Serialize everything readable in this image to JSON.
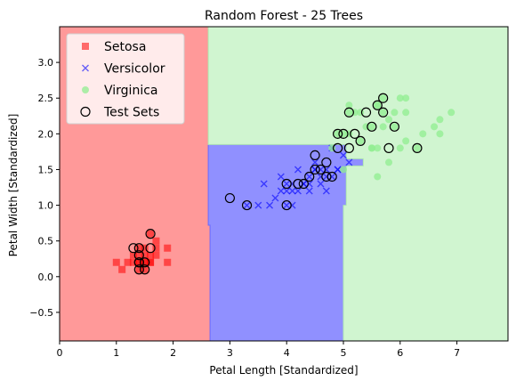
{
  "chart_data": {
    "type": "scatter",
    "title": "Random Forest - 25 Trees",
    "xlabel": "Petal Length [Standardized]",
    "ylabel": "Petal Width [Standardized]",
    "xlim": [
      0,
      7.9
    ],
    "ylim": [
      -0.9,
      3.5
    ],
    "x_ticks": [
      0,
      1,
      2,
      3,
      4,
      5,
      6,
      7
    ],
    "y_ticks": [
      -0.5,
      0.0,
      0.5,
      1.0,
      1.5,
      2.0,
      2.5,
      3.0
    ],
    "y_tick_labels": [
      "−0.5",
      "0.0",
      "0.5",
      "1.0",
      "1.5",
      "2.0",
      "2.5",
      "3.0"
    ],
    "grid": false,
    "legend_placement": "top-left",
    "colors": {
      "setosa": "#ff0000",
      "versicolor": "#0000ff",
      "virginica": "#90ee90",
      "region_setosa": "#ff9999",
      "region_versicolor": "#9090ff",
      "region_virginica": "#d0f5d0",
      "test_edge": "#000000"
    },
    "decision_regions": [
      {
        "class": "Setosa",
        "polygon": [
          [
            0,
            -0.9
          ],
          [
            2.65,
            -0.9
          ],
          [
            2.65,
            0.72
          ],
          [
            2.62,
            0.72
          ],
          [
            2.62,
            3.5
          ],
          [
            0,
            3.5
          ]
        ]
      },
      {
        "class": "Versicolor",
        "polygon": [
          [
            2.65,
            -0.9
          ],
          [
            5.0,
            -0.9
          ],
          [
            5.0,
            1.0
          ],
          [
            5.05,
            1.0
          ],
          [
            5.05,
            1.55
          ],
          [
            5.35,
            1.55
          ],
          [
            5.35,
            1.65
          ],
          [
            5.05,
            1.65
          ],
          [
            5.05,
            1.85
          ],
          [
            2.62,
            1.85
          ],
          [
            2.62,
            0.72
          ],
          [
            2.65,
            0.72
          ]
        ]
      },
      {
        "class": "Virginica",
        "polygon": [
          [
            5.0,
            -0.9
          ],
          [
            7.9,
            -0.9
          ],
          [
            7.9,
            3.5
          ],
          [
            2.62,
            3.5
          ],
          [
            2.62,
            1.85
          ],
          [
            5.05,
            1.85
          ],
          [
            5.05,
            1.65
          ],
          [
            5.35,
            1.65
          ],
          [
            5.35,
            1.55
          ],
          [
            5.05,
            1.55
          ],
          [
            5.05,
            1.0
          ],
          [
            5.0,
            1.0
          ]
        ]
      }
    ],
    "series": [
      {
        "name": "Setosa",
        "marker": "square",
        "points": [
          [
            1.4,
            0.2
          ],
          [
            1.3,
            0.2
          ],
          [
            1.5,
            0.2
          ],
          [
            1.4,
            0.2
          ],
          [
            1.7,
            0.4
          ],
          [
            1.4,
            0.3
          ],
          [
            1.5,
            0.2
          ],
          [
            1.5,
            0.1
          ],
          [
            1.6,
            0.2
          ],
          [
            1.4,
            0.1
          ],
          [
            1.1,
            0.1
          ],
          [
            1.2,
            0.2
          ],
          [
            1.7,
            0.3
          ],
          [
            1.5,
            0.3
          ],
          [
            1.0,
            0.2
          ],
          [
            1.9,
            0.2
          ],
          [
            1.6,
            0.2
          ],
          [
            1.9,
            0.4
          ],
          [
            1.6,
            0.6
          ],
          [
            1.7,
            0.5
          ],
          [
            1.3,
            0.3
          ],
          [
            1.5,
            0.4
          ],
          [
            1.4,
            0.4
          ],
          [
            1.6,
            0.3
          ]
        ]
      },
      {
        "name": "Versicolor",
        "marker": "x",
        "points": [
          [
            4.7,
            1.4
          ],
          [
            4.5,
            1.5
          ],
          [
            4.9,
            1.5
          ],
          [
            4.0,
            1.3
          ],
          [
            4.6,
            1.5
          ],
          [
            3.3,
            1.0
          ],
          [
            4.6,
            1.3
          ],
          [
            3.9,
            1.4
          ],
          [
            3.5,
            1.0
          ],
          [
            4.2,
            1.5
          ],
          [
            4.0,
            1.0
          ],
          [
            4.4,
            1.4
          ],
          [
            4.1,
            1.0
          ],
          [
            3.6,
            1.3
          ],
          [
            4.4,
            1.3
          ],
          [
            4.5,
            1.5
          ],
          [
            4.8,
            1.8
          ],
          [
            4.9,
            1.5
          ],
          [
            4.7,
            1.2
          ],
          [
            4.3,
            1.3
          ],
          [
            4.8,
            1.4
          ],
          [
            5.0,
            1.7
          ],
          [
            3.8,
            1.1
          ],
          [
            3.7,
            1.0
          ],
          [
            5.1,
            1.6
          ],
          [
            4.5,
            1.6
          ],
          [
            4.7,
            1.5
          ],
          [
            4.4,
            1.2
          ],
          [
            4.1,
            1.3
          ],
          [
            4.0,
            1.2
          ],
          [
            4.6,
            1.4
          ],
          [
            4.2,
            1.2
          ],
          [
            4.3,
            1.3
          ],
          [
            3.9,
            1.2
          ],
          [
            4.1,
            1.2
          ]
        ]
      },
      {
        "name": "Virginica",
        "marker": "circle",
        "points": [
          [
            6.0,
            2.5
          ],
          [
            5.9,
            2.1
          ],
          [
            5.6,
            1.8
          ],
          [
            5.8,
            2.2
          ],
          [
            6.6,
            2.1
          ],
          [
            6.3,
            1.8
          ],
          [
            6.1,
            2.5
          ],
          [
            5.1,
            2.0
          ],
          [
            5.3,
            1.9
          ],
          [
            5.5,
            2.1
          ],
          [
            5.0,
            2.0
          ],
          [
            5.1,
            2.4
          ],
          [
            5.3,
            2.3
          ],
          [
            5.5,
            1.8
          ],
          [
            6.7,
            2.2
          ],
          [
            6.9,
            2.3
          ],
          [
            5.0,
            1.5
          ],
          [
            5.7,
            2.3
          ],
          [
            4.9,
            2.0
          ],
          [
            6.7,
            2.0
          ],
          [
            5.7,
            2.1
          ],
          [
            6.0,
            1.8
          ],
          [
            4.8,
            1.8
          ],
          [
            5.8,
            1.6
          ],
          [
            6.1,
            1.9
          ],
          [
            6.4,
            2.0
          ],
          [
            5.6,
            1.4
          ],
          [
            6.1,
            2.3
          ],
          [
            5.6,
            2.4
          ],
          [
            5.5,
            1.8
          ],
          [
            5.4,
            2.1
          ],
          [
            5.6,
            2.4
          ],
          [
            5.1,
            2.3
          ],
          [
            5.9,
            2.3
          ],
          [
            5.7,
            2.5
          ],
          [
            5.2,
            2.3
          ]
        ]
      },
      {
        "name": "Test Sets",
        "marker": "open-circle",
        "points": [
          [
            1.4,
            0.4
          ],
          [
            1.5,
            0.2
          ],
          [
            1.4,
            0.3
          ],
          [
            1.6,
            0.6
          ],
          [
            1.3,
            0.4
          ],
          [
            1.4,
            0.2
          ],
          [
            1.4,
            0.1
          ],
          [
            1.5,
            0.1
          ],
          [
            1.6,
            0.4
          ],
          [
            1.4,
            0.2
          ],
          [
            3.0,
            1.1
          ],
          [
            3.3,
            1.0
          ],
          [
            4.0,
            1.0
          ],
          [
            4.0,
            1.3
          ],
          [
            4.2,
            1.3
          ],
          [
            4.3,
            1.3
          ],
          [
            4.4,
            1.4
          ],
          [
            4.5,
            1.5
          ],
          [
            4.6,
            1.5
          ],
          [
            4.7,
            1.6
          ],
          [
            4.7,
            1.4
          ],
          [
            4.8,
            1.4
          ],
          [
            4.5,
            1.7
          ],
          [
            4.9,
            1.8
          ],
          [
            4.9,
            2.0
          ],
          [
            5.0,
            2.0
          ],
          [
            5.1,
            2.3
          ],
          [
            5.1,
            1.8
          ],
          [
            5.2,
            2.0
          ],
          [
            5.3,
            1.9
          ],
          [
            5.4,
            2.3
          ],
          [
            5.5,
            2.1
          ],
          [
            5.6,
            2.4
          ],
          [
            5.7,
            2.5
          ],
          [
            5.7,
            2.3
          ],
          [
            5.8,
            1.8
          ],
          [
            5.9,
            2.1
          ],
          [
            6.3,
            1.8
          ]
        ]
      }
    ]
  }
}
